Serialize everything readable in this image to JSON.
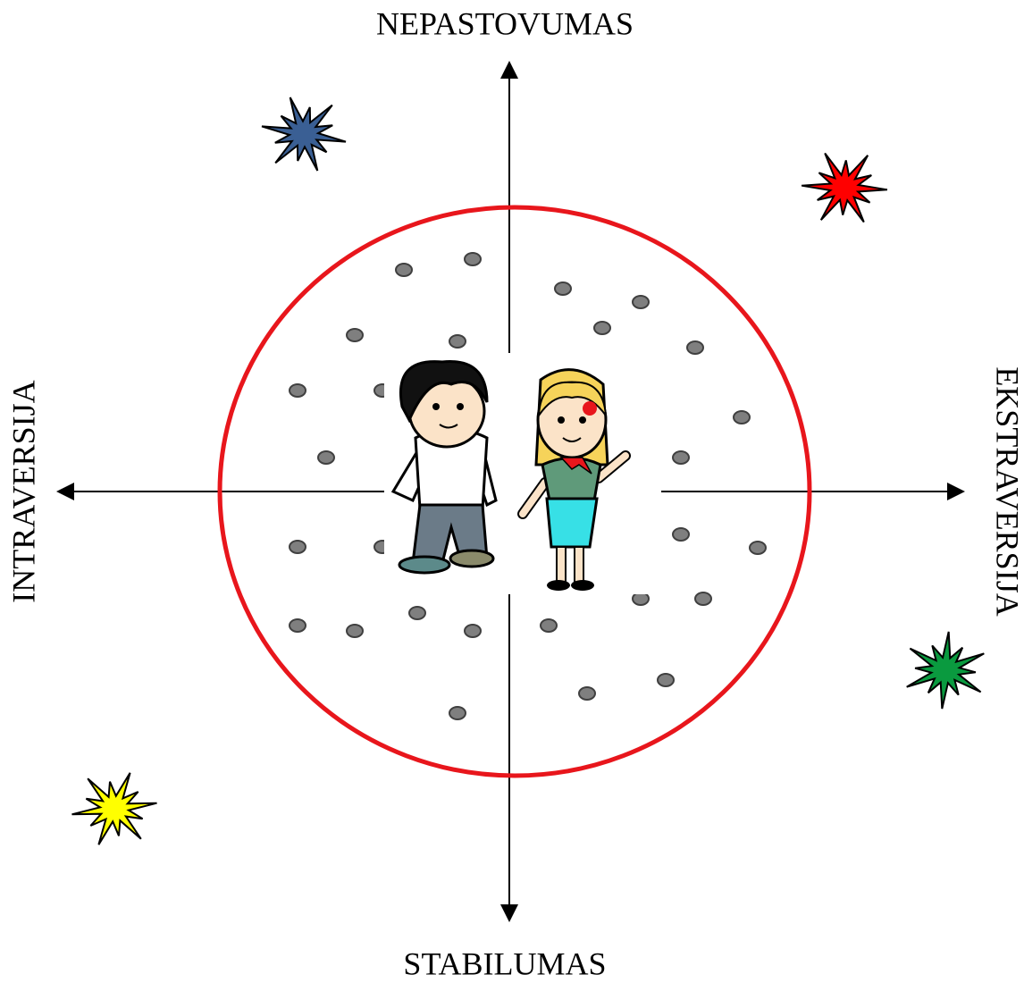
{
  "labels": {
    "top": "NEPASTOVUMAS",
    "bottom": "STABILUMAS",
    "left": "INTRAVERSIJA",
    "right": "EKSTRAVERSIJA"
  }
}
